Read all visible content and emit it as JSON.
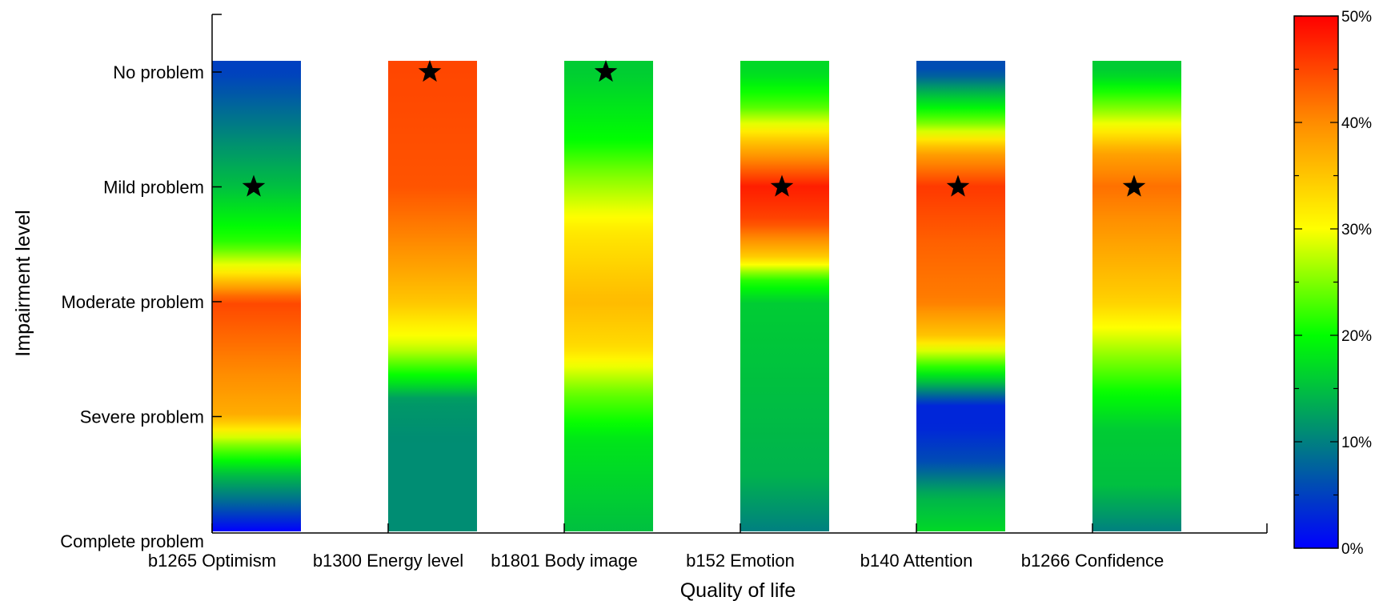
{
  "chart_data": {
    "type": "heatmap",
    "title": "",
    "xlabel": "Quality of life",
    "ylabel": "Impairment level",
    "y_categories": [
      "No problem",
      "Mild problem",
      "Moderate problem",
      "Severe problem",
      "Complete problem"
    ],
    "x_categories": [
      "b1265 Optimism",
      "b1300 Energy level",
      "b1801 Body image",
      "b152 Emotion",
      "b140 Attention",
      "b1266 Confidence"
    ],
    "colorbar": {
      "range": [
        0,
        50
      ],
      "tick_labels": [
        "0%",
        "10%",
        "20%",
        "30%",
        "40%",
        "50%"
      ],
      "colormap": [
        "#0000ff",
        "#008080",
        "#00ff00",
        "#ffff00",
        "#ff8c00",
        "#ff0000"
      ]
    },
    "series": [
      {
        "category": "b1265 Optimism",
        "profile": [
          {
            "level": 0,
            "value": 5
          },
          {
            "level": 0.5,
            "value": 10
          },
          {
            "level": 1,
            "value": 15
          },
          {
            "level": 1.5,
            "value": 22
          },
          {
            "level": 1.75,
            "value": 32
          },
          {
            "level": 2,
            "value": 45
          },
          {
            "level": 2.5,
            "value": 41
          },
          {
            "level": 3,
            "value": 37
          },
          {
            "level": 3.25,
            "value": 25
          },
          {
            "level": 3.5,
            "value": 15
          },
          {
            "level": 3.75,
            "value": 8
          },
          {
            "level": 4,
            "value": 0
          }
        ],
        "star_level": 1
      },
      {
        "category": "b1300 Energy level",
        "profile": [
          {
            "level": 0,
            "value": 45
          },
          {
            "level": 1,
            "value": 44
          },
          {
            "level": 1.5,
            "value": 40
          },
          {
            "level": 2,
            "value": 35
          },
          {
            "level": 2.4,
            "value": 28
          },
          {
            "level": 2.7,
            "value": 18
          },
          {
            "level": 2.85,
            "value": 12
          },
          {
            "level": 3.2,
            "value": 11
          },
          {
            "level": 4,
            "value": 11
          }
        ],
        "star_level": 0
      },
      {
        "category": "b1801 Body image",
        "profile": [
          {
            "level": 0,
            "value": 16
          },
          {
            "level": 0.6,
            "value": 20
          },
          {
            "level": 0.9,
            "value": 25
          },
          {
            "level": 1.4,
            "value": 32
          },
          {
            "level": 2,
            "value": 36
          },
          {
            "level": 2.4,
            "value": 33
          },
          {
            "level": 2.8,
            "value": 24
          },
          {
            "level": 3.2,
            "value": 18
          },
          {
            "level": 4,
            "value": 15
          }
        ],
        "star_level": 0
      },
      {
        "category": "b152 Emotion",
        "profile": [
          {
            "level": 0,
            "value": 17
          },
          {
            "level": 0.3,
            "value": 23
          },
          {
            "level": 0.6,
            "value": 35
          },
          {
            "level": 1,
            "value": 48
          },
          {
            "level": 1.3,
            "value": 45
          },
          {
            "level": 1.6,
            "value": 35
          },
          {
            "level": 1.8,
            "value": 22
          },
          {
            "level": 2,
            "value": 16
          },
          {
            "level": 3.5,
            "value": 14
          },
          {
            "level": 4,
            "value": 10
          }
        ],
        "star_level": 1
      },
      {
        "category": "b140 Attention",
        "profile": [
          {
            "level": 0,
            "value": 6
          },
          {
            "level": 0.2,
            "value": 15
          },
          {
            "level": 0.45,
            "value": 25
          },
          {
            "level": 0.7,
            "value": 38
          },
          {
            "level": 1,
            "value": 46
          },
          {
            "level": 1.5,
            "value": 43
          },
          {
            "level": 2,
            "value": 41
          },
          {
            "level": 2.3,
            "value": 35
          },
          {
            "level": 2.5,
            "value": 25
          },
          {
            "level": 2.7,
            "value": 15
          },
          {
            "level": 2.9,
            "value": 3
          },
          {
            "level": 3.1,
            "value": 3
          },
          {
            "level": 3.4,
            "value": 6
          },
          {
            "level": 3.7,
            "value": 14
          },
          {
            "level": 4,
            "value": 17
          }
        ],
        "star_level": 1
      },
      {
        "category": "b1266 Confidence",
        "profile": [
          {
            "level": 0,
            "value": 16
          },
          {
            "level": 0.35,
            "value": 26
          },
          {
            "level": 0.7,
            "value": 38
          },
          {
            "level": 1,
            "value": 42
          },
          {
            "level": 1.5,
            "value": 38
          },
          {
            "level": 2,
            "value": 34
          },
          {
            "level": 2.5,
            "value": 25
          },
          {
            "level": 2.8,
            "value": 20
          },
          {
            "level": 3.1,
            "value": 16
          },
          {
            "level": 3.6,
            "value": 15
          },
          {
            "level": 4,
            "value": 10
          }
        ],
        "star_level": 1
      }
    ]
  }
}
